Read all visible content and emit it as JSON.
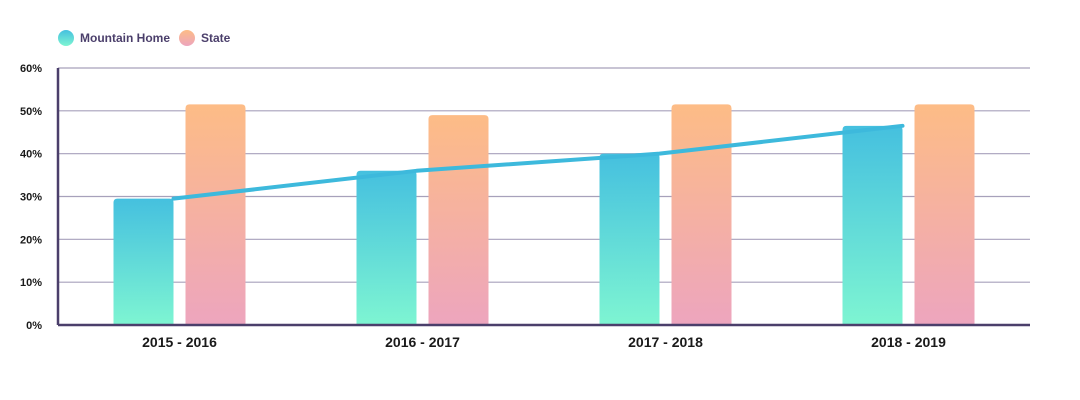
{
  "chart_data": {
    "type": "bar",
    "categories": [
      "2015 - 2016",
      "2016 - 2017",
      "2017 - 2018",
      "2018 - 2019"
    ],
    "series": [
      {
        "name": "Mountain Home",
        "values": [
          29.5,
          36,
          40,
          46.5
        ],
        "color": "#45c0df",
        "color_bottom": "#7ef5d2"
      },
      {
        "name": "State",
        "values": [
          51.5,
          49,
          51.5,
          51.5
        ],
        "color": "#fdbc86",
        "color_bottom": "#eda5be"
      }
    ],
    "line": {
      "series": "Mountain Home",
      "color": "#3db9dc"
    },
    "y_ticks": [
      "0%",
      "10%",
      "20%",
      "30%",
      "40%",
      "50%",
      "60%"
    ],
    "ylim": [
      0,
      60
    ],
    "grid": true,
    "legend_position": "top-left",
    "axis_color": "#4b3f6b",
    "grid_color": "#a7a1bb"
  }
}
